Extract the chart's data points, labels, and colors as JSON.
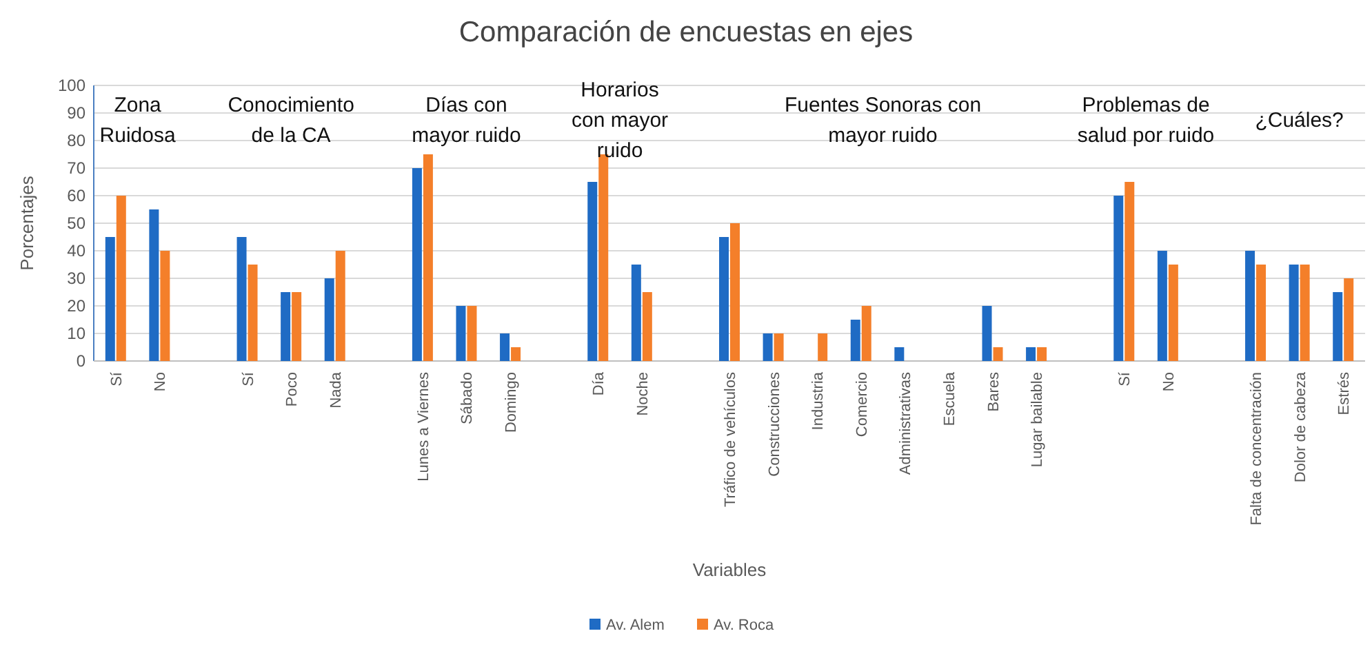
{
  "chart_data": {
    "type": "bar",
    "title": "Comparación de encuestas en ejes",
    "xlabel": "Variables",
    "ylabel": "Porcentajes",
    "categories": [
      "Sí",
      "No",
      null,
      "Sí",
      "Poco",
      "Nada",
      null,
      "Lunes a Viernes",
      "Sábado",
      "Domingo",
      null,
      "Día",
      "Noche",
      null,
      "Tráfico de vehículos",
      "Construcciones",
      "Industria",
      "Comercio",
      "Administrativas",
      "Escuela",
      "Bares",
      "Lugar bailable",
      null,
      "Sí",
      "No",
      null,
      "Falta de concentración",
      "Dolor de cabeza",
      "Estrés"
    ],
    "series": [
      {
        "name": "Av. Alem",
        "color": "#1f6bc4",
        "values": [
          45,
          55,
          null,
          45,
          25,
          30,
          null,
          70,
          20,
          10,
          null,
          65,
          35,
          null,
          45,
          10,
          0,
          15,
          5,
          0,
          20,
          5,
          null,
          60,
          40,
          null,
          40,
          35,
          25
        ]
      },
      {
        "name": "Av. Roca",
        "color": "#f47f2a",
        "values": [
          60,
          40,
          null,
          35,
          25,
          40,
          null,
          75,
          20,
          5,
          null,
          75,
          25,
          null,
          50,
          10,
          10,
          20,
          0,
          0,
          5,
          5,
          null,
          65,
          35,
          null,
          35,
          35,
          30
        ]
      }
    ],
    "annotations": [
      "Zona\nRuidosa",
      "Conocimiento\nde la CA",
      "Días con\nmayor ruido",
      "Horarios\ncon mayor\nruido",
      "Fuentes Sonoras con\nmayor ruido",
      "Problemas de\nsalud por ruido",
      "¿Cuáles?"
    ],
    "ylim": [
      0,
      100
    ],
    "yticks": [
      0,
      10,
      20,
      30,
      40,
      50,
      60,
      70,
      80,
      90,
      100
    ],
    "grid": "y",
    "legend": "bottom"
  }
}
